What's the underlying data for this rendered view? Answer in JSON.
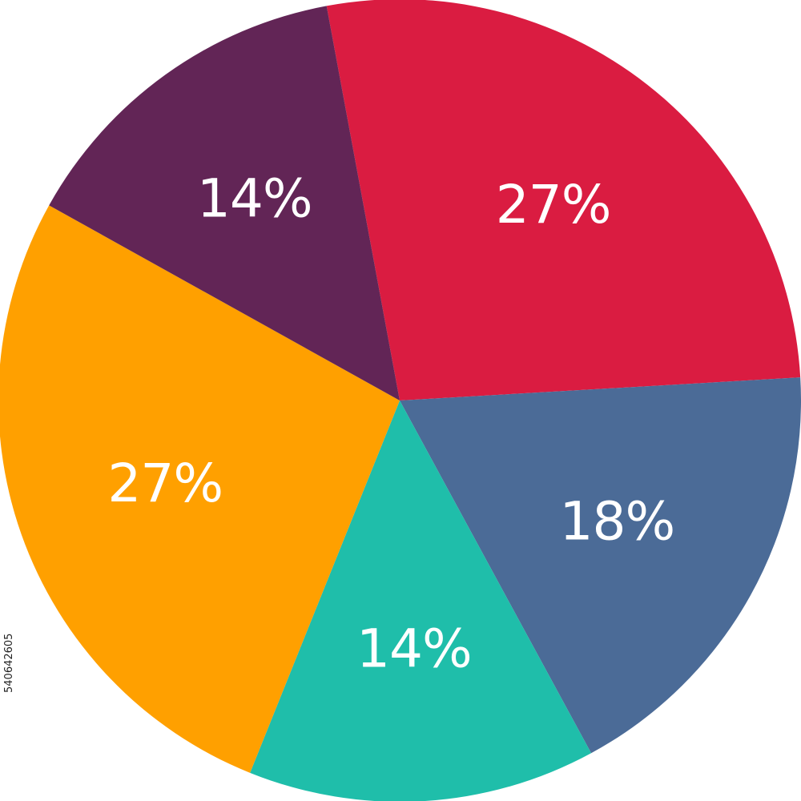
{
  "chart_data": {
    "type": "pie",
    "slices": [
      {
        "label": "27%",
        "value": 27,
        "color": "#DA1C41"
      },
      {
        "label": "18%",
        "value": 18,
        "color": "#4B6B97"
      },
      {
        "label": "14%",
        "value": 14,
        "color": "#1FBEAA"
      },
      {
        "label": "27%",
        "value": 27,
        "color": "#FFA000"
      },
      {
        "label": "14%",
        "value": 14,
        "color": "#622556"
      }
    ],
    "direction": "clockwise",
    "start": "top"
  },
  "watermark": {
    "id_text": "540642605"
  }
}
